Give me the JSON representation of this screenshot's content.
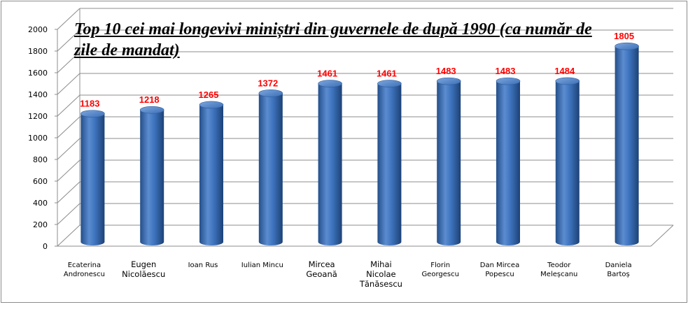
{
  "chart_data": {
    "type": "bar",
    "title": "Top 10 cei mai longevivi miniștri din guvernele de după 1990 (ca număr de zile de mandat)",
    "categories": [
      [
        "Ecaterina",
        "Andronescu"
      ],
      [
        "Eugen",
        "Nicolăescu"
      ],
      [
        "Ioan Rus"
      ],
      [
        "Iulian Mincu"
      ],
      [
        "Mircea",
        "Geoană"
      ],
      [
        "Mihai",
        "Nicolae",
        "Tănăsescu"
      ],
      [
        "Florin",
        "Georgescu"
      ],
      [
        "Dan Mircea",
        "Popescu"
      ],
      [
        "Teodor",
        "Meleșcanu"
      ],
      [
        "Daniela",
        "Bartoș"
      ]
    ],
    "values": [
      1183,
      1218,
      1265,
      1372,
      1461,
      1461,
      1483,
      1483,
      1484,
      1805
    ],
    "ylim": [
      0,
      2000
    ],
    "yticks": [
      0,
      200,
      400,
      600,
      800,
      1000,
      1200,
      1400,
      1600,
      1800,
      2000
    ],
    "grid": true,
    "legend": "none",
    "colors": {
      "bar": "#3a6fb8",
      "bar_light": "#6d9ad6",
      "bar_dark": "#1f4678",
      "data_label": "#ff0000",
      "grid": "#8c8c8c"
    }
  }
}
